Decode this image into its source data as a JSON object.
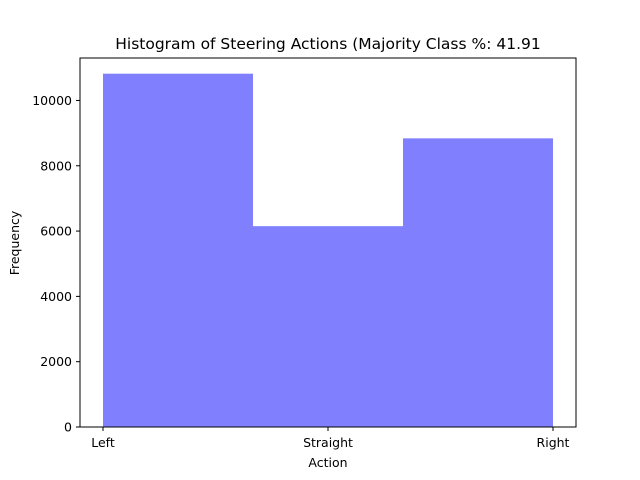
{
  "chart_data": {
    "type": "bar",
    "title": "Histogram of Steering Actions (Majority Class %: 41.91",
    "xlabel": "Action",
    "ylabel": "Frequency",
    "categories": [
      "Left",
      "Straight",
      "Right"
    ],
    "values": [
      10820,
      6150,
      8840
    ],
    "ylim": [
      0,
      11300
    ],
    "yticks": [
      0,
      2000,
      4000,
      6000,
      8000,
      10000
    ],
    "xticks": [
      "Left",
      "Straight",
      "Right"
    ],
    "bar_color": "#8080ff",
    "grid": false,
    "legend": "none"
  }
}
